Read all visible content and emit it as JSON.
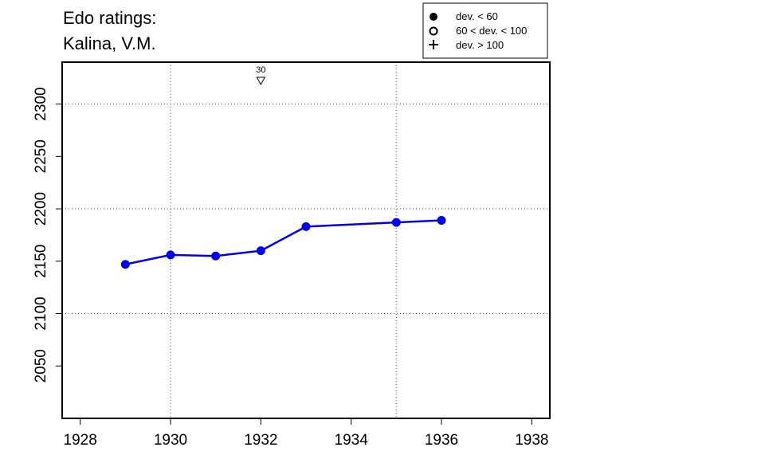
{
  "title_line1": "Edo ratings:",
  "title_line2": "Kalina, V.M.",
  "legend": {
    "filled": "dev. < 60",
    "open": "60 < dev. < 100",
    "plus": "dev. > 100"
  },
  "annotation": {
    "label": "30",
    "x": 1932,
    "marker": "down-triangle"
  },
  "chart_data": {
    "type": "line",
    "title": "Edo ratings: Kalina, V.M.",
    "xlabel": "",
    "ylabel": "",
    "xlim": [
      1928,
      1938
    ],
    "ylim": [
      2000,
      2340
    ],
    "xticks": [
      1928,
      1930,
      1932,
      1934,
      1936,
      1938
    ],
    "yticks": [
      2050,
      2100,
      2150,
      2200,
      2250,
      2300
    ],
    "grid_x": [
      1930,
      1935
    ],
    "grid_y": [
      2100,
      2200,
      2300
    ],
    "legend_position": "top-right",
    "series": [
      {
        "color": "#0000ee",
        "marker": "filled-circle",
        "points": [
          {
            "x": 1929,
            "y": 2147
          },
          {
            "x": 1930,
            "y": 2156
          },
          {
            "x": 1931,
            "y": 2155
          },
          {
            "x": 1932,
            "y": 2160
          },
          {
            "x": 1933,
            "y": 2183
          },
          {
            "x": 1935,
            "y": 2187
          },
          {
            "x": 1936,
            "y": 2189
          }
        ]
      }
    ]
  }
}
